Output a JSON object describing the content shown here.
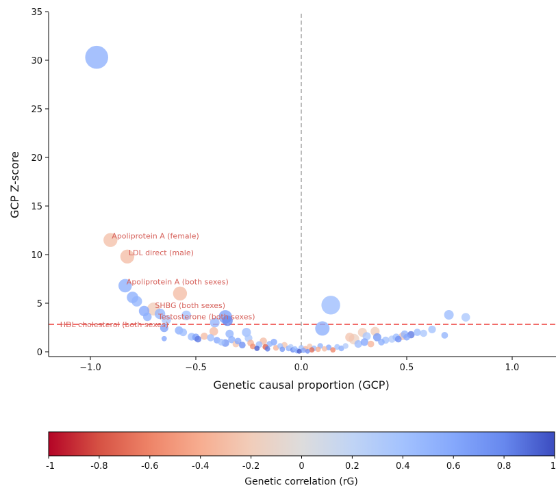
{
  "chart_data": [
    {
      "type": "scatter",
      "xlabel": "Genetic causal proportion (GCP)",
      "ylabel": "GCP Z-score",
      "xlim": [
        -1.2,
        1.2
      ],
      "ylim": [
        -0.5,
        35
      ],
      "x_ticks": [
        -1.0,
        -0.5,
        0.0,
        0.5,
        1.0
      ],
      "x_tick_labels": [
        "−1.0",
        "−0.5",
        "0.0",
        "0.5",
        "1.0"
      ],
      "y_ticks": [
        0,
        5,
        10,
        15,
        20,
        25,
        30,
        35
      ],
      "y_tick_labels": [
        "0",
        "5",
        "10",
        "15",
        "20",
        "25",
        "30",
        "35"
      ],
      "grid": false,
      "reference_lines": {
        "significance_threshold_y": 2.83,
        "significance_color": "#f0605d",
        "zero_x": 0.0,
        "zero_color": "#bbbbbb"
      },
      "annotation_color": "#d6605a",
      "annotations": [
        {
          "text": "Apoliprotein A (female)",
          "x": -0.905,
          "y": 11.5
        },
        {
          "text": "LDL direct (male)",
          "x": -0.825,
          "y": 9.8
        },
        {
          "text": "Apoliprotein A (both sexes)",
          "x": -0.835,
          "y": 6.8
        },
        {
          "text": "SHBG (both sexes)",
          "x": -0.7,
          "y": 4.35
        },
        {
          "text": "Testosterone (both sexes)",
          "x": -0.685,
          "y": 3.2
        },
        {
          "text": "HDL cholesterol (both sexes)",
          "x": -1.15,
          "y": 2.4
        }
      ],
      "points": [
        {
          "x": -0.97,
          "y": 30.3,
          "size": 2.4,
          "rg": 0.55
        },
        {
          "x": -0.905,
          "y": 11.5,
          "size": 1.45,
          "rg": -0.28
        },
        {
          "x": -0.825,
          "y": 9.8,
          "size": 1.45,
          "rg": -0.3
        },
        {
          "x": -0.835,
          "y": 6.8,
          "size": 1.4,
          "rg": 0.55
        },
        {
          "x": -0.575,
          "y": 6.0,
          "size": 1.45,
          "rg": -0.3
        },
        {
          "x": -0.8,
          "y": 5.6,
          "size": 1.2,
          "rg": 0.55
        },
        {
          "x": -0.78,
          "y": 5.2,
          "size": 1.1,
          "rg": 0.5
        },
        {
          "x": -0.745,
          "y": 4.2,
          "size": 1.1,
          "rg": 0.6
        },
        {
          "x": -0.7,
          "y": 4.4,
          "size": 1.35,
          "rg": -0.2
        },
        {
          "x": -0.67,
          "y": 3.9,
          "size": 1.1,
          "rg": 0.5
        },
        {
          "x": -0.73,
          "y": 3.6,
          "size": 0.9,
          "rg": 0.55
        },
        {
          "x": -0.64,
          "y": 3.3,
          "size": 1.0,
          "rg": 0.35
        },
        {
          "x": -0.545,
          "y": 3.75,
          "size": 1.0,
          "rg": 0.4
        },
        {
          "x": -0.36,
          "y": 3.6,
          "size": 1.4,
          "rg": 0.65
        },
        {
          "x": -0.35,
          "y": 3.2,
          "size": 1.1,
          "rg": 0.8
        },
        {
          "x": -0.41,
          "y": 3.0,
          "size": 1.0,
          "rg": 0.5
        },
        {
          "x": -0.415,
          "y": 2.1,
          "size": 0.9,
          "rg": -0.3
        },
        {
          "x": -0.65,
          "y": 2.45,
          "size": 0.85,
          "rg": 0.65
        },
        {
          "x": -0.58,
          "y": 2.2,
          "size": 0.85,
          "rg": 0.55
        },
        {
          "x": -0.56,
          "y": 2.0,
          "size": 0.8,
          "rg": 0.45
        },
        {
          "x": -0.65,
          "y": 1.35,
          "size": 0.55,
          "rg": 0.6
        },
        {
          "x": -0.52,
          "y": 1.55,
          "size": 0.8,
          "rg": 0.45
        },
        {
          "x": -0.5,
          "y": 1.5,
          "size": 0.75,
          "rg": 0.65
        },
        {
          "x": -0.49,
          "y": 1.3,
          "size": 0.7,
          "rg": 0.85
        },
        {
          "x": -0.46,
          "y": 1.6,
          "size": 0.75,
          "rg": -0.3
        },
        {
          "x": -0.43,
          "y": 1.45,
          "size": 0.75,
          "rg": 0.45
        },
        {
          "x": -0.4,
          "y": 1.2,
          "size": 0.7,
          "rg": 0.6
        },
        {
          "x": -0.38,
          "y": 1.0,
          "size": 0.7,
          "rg": 0.4
        },
        {
          "x": -0.36,
          "y": 0.9,
          "size": 0.8,
          "rg": 0.7
        },
        {
          "x": -0.34,
          "y": 1.85,
          "size": 0.85,
          "rg": 0.5
        },
        {
          "x": -0.33,
          "y": 1.25,
          "size": 0.75,
          "rg": 0.55
        },
        {
          "x": -0.31,
          "y": 0.8,
          "size": 0.7,
          "rg": -0.25
        },
        {
          "x": -0.3,
          "y": 1.1,
          "size": 0.7,
          "rg": 0.6
        },
        {
          "x": -0.28,
          "y": 0.7,
          "size": 0.7,
          "rg": 0.75
        },
        {
          "x": -0.26,
          "y": 2.0,
          "size": 0.95,
          "rg": 0.45
        },
        {
          "x": -0.25,
          "y": 1.4,
          "size": 0.8,
          "rg": 0.35
        },
        {
          "x": -0.24,
          "y": 0.9,
          "size": 0.7,
          "rg": -0.35
        },
        {
          "x": -0.23,
          "y": 0.55,
          "size": 0.6,
          "rg": -0.55
        },
        {
          "x": -0.21,
          "y": 0.35,
          "size": 0.55,
          "rg": 0.95
        },
        {
          "x": -0.2,
          "y": 0.75,
          "size": 0.7,
          "rg": 0.45
        },
        {
          "x": -0.18,
          "y": 1.1,
          "size": 0.75,
          "rg": -0.3
        },
        {
          "x": -0.17,
          "y": 0.5,
          "size": 0.6,
          "rg": -0.75
        },
        {
          "x": -0.16,
          "y": 0.3,
          "size": 0.55,
          "rg": 0.85
        },
        {
          "x": -0.15,
          "y": 0.8,
          "size": 0.65,
          "rg": 0.5
        },
        {
          "x": -0.13,
          "y": 1.0,
          "size": 0.7,
          "rg": 0.6
        },
        {
          "x": -0.12,
          "y": 0.4,
          "size": 0.6,
          "rg": -0.35
        },
        {
          "x": -0.1,
          "y": 0.6,
          "size": 0.6,
          "rg": 0.4
        },
        {
          "x": -0.09,
          "y": 0.25,
          "size": 0.55,
          "rg": 0.7
        },
        {
          "x": -0.08,
          "y": 0.7,
          "size": 0.65,
          "rg": -0.25
        },
        {
          "x": -0.06,
          "y": 0.35,
          "size": 0.6,
          "rg": 0.55
        },
        {
          "x": -0.05,
          "y": 0.5,
          "size": 0.6,
          "rg": 0.3
        },
        {
          "x": -0.04,
          "y": 0.2,
          "size": 0.55,
          "rg": 0.8
        },
        {
          "x": -0.03,
          "y": 0.3,
          "size": 0.55,
          "rg": 0.45
        },
        {
          "x": -0.02,
          "y": 0.1,
          "size": 0.55,
          "rg": 0.55
        },
        {
          "x": -0.01,
          "y": 0.05,
          "size": 0.5,
          "rg": 0.95
        },
        {
          "x": 0.0,
          "y": 0.4,
          "size": 0.6,
          "rg": 0.4
        },
        {
          "x": 0.01,
          "y": 0.15,
          "size": 0.55,
          "rg": 0.6
        },
        {
          "x": 0.02,
          "y": 0.3,
          "size": 0.6,
          "rg": -0.35
        },
        {
          "x": 0.03,
          "y": 0.05,
          "size": 0.5,
          "rg": 0.75
        },
        {
          "x": 0.04,
          "y": 0.55,
          "size": 0.6,
          "rg": -0.25
        },
        {
          "x": 0.05,
          "y": 0.2,
          "size": 0.55,
          "rg": -0.7
        },
        {
          "x": 0.06,
          "y": 0.35,
          "size": 0.6,
          "rg": 0.45
        },
        {
          "x": 0.08,
          "y": 0.25,
          "size": 0.55,
          "rg": -0.4
        },
        {
          "x": 0.09,
          "y": 0.6,
          "size": 0.6,
          "rg": 0.5
        },
        {
          "x": 0.1,
          "y": 2.4,
          "size": 1.5,
          "rg": 0.55
        },
        {
          "x": 0.11,
          "y": 0.3,
          "size": 0.55,
          "rg": -0.3
        },
        {
          "x": 0.13,
          "y": 0.45,
          "size": 0.6,
          "rg": 0.6
        },
        {
          "x": 0.14,
          "y": 4.8,
          "size": 1.95,
          "rg": 0.45
        },
        {
          "x": 0.15,
          "y": 0.2,
          "size": 0.55,
          "rg": -0.6
        },
        {
          "x": 0.17,
          "y": 0.5,
          "size": 0.6,
          "rg": 0.4
        },
        {
          "x": 0.19,
          "y": 0.35,
          "size": 0.6,
          "rg": 0.55
        },
        {
          "x": 0.21,
          "y": 0.6,
          "size": 0.6,
          "rg": 0.3
        },
        {
          "x": 0.23,
          "y": 1.5,
          "size": 0.95,
          "rg": -0.25
        },
        {
          "x": 0.25,
          "y": 1.3,
          "size": 1.1,
          "rg": -0.15
        },
        {
          "x": 0.27,
          "y": 0.8,
          "size": 0.8,
          "rg": 0.45
        },
        {
          "x": 0.29,
          "y": 2.0,
          "size": 0.95,
          "rg": -0.2
        },
        {
          "x": 0.3,
          "y": 1.0,
          "size": 0.8,
          "rg": 0.6
        },
        {
          "x": 0.31,
          "y": 1.6,
          "size": 0.85,
          "rg": 0.35
        },
        {
          "x": 0.33,
          "y": 0.8,
          "size": 0.7,
          "rg": -0.35
        },
        {
          "x": 0.35,
          "y": 2.1,
          "size": 0.95,
          "rg": -0.2
        },
        {
          "x": 0.36,
          "y": 1.5,
          "size": 0.85,
          "rg": 0.7
        },
        {
          "x": 0.38,
          "y": 1.0,
          "size": 0.7,
          "rg": 0.55
        },
        {
          "x": 0.4,
          "y": 1.2,
          "size": 0.75,
          "rg": 0.4
        },
        {
          "x": 0.43,
          "y": 1.3,
          "size": 0.75,
          "rg": 0.3
        },
        {
          "x": 0.45,
          "y": 1.5,
          "size": 0.75,
          "rg": 0.45
        },
        {
          "x": 0.46,
          "y": 1.3,
          "size": 0.7,
          "rg": 0.75
        },
        {
          "x": 0.48,
          "y": 1.6,
          "size": 0.8,
          "rg": -0.25
        },
        {
          "x": 0.49,
          "y": 1.8,
          "size": 0.8,
          "rg": 0.5
        },
        {
          "x": 0.5,
          "y": 1.5,
          "size": 0.7,
          "rg": 0.6
        },
        {
          "x": 0.52,
          "y": 1.75,
          "size": 0.75,
          "rg": 0.85
        },
        {
          "x": 0.55,
          "y": 2.0,
          "size": 0.75,
          "rg": 0.45
        },
        {
          "x": 0.58,
          "y": 1.9,
          "size": 0.75,
          "rg": 0.35
        },
        {
          "x": 0.62,
          "y": 2.3,
          "size": 0.8,
          "rg": 0.4
        },
        {
          "x": 0.68,
          "y": 1.7,
          "size": 0.7,
          "rg": 0.5
        },
        {
          "x": 0.7,
          "y": 3.8,
          "size": 1.0,
          "rg": 0.45
        },
        {
          "x": 0.78,
          "y": 3.55,
          "size": 0.9,
          "rg": 0.35
        }
      ],
      "point_opacity": 0.78
    },
    {
      "type": "heatmap",
      "label": "Genetic correlation (rG)",
      "range": [
        -1,
        1
      ],
      "ticks": [
        -1,
        -0.8,
        -0.6,
        -0.4,
        -0.2,
        0,
        0.2,
        0.4,
        0.6,
        0.8,
        1
      ],
      "tick_labels": [
        "-1",
        "-0.8",
        "-0.6",
        "-0.4",
        "-0.2",
        "0",
        "0.2",
        "0.4",
        "0.6",
        "0.8",
        "1"
      ],
      "colormap": "coolwarm_r",
      "colormap_stops": [
        "#b40426",
        "#d65244",
        "#ee8468",
        "#f7ad90",
        "#f1cdba",
        "#dddcdc",
        "#c0d4f5",
        "#a3c2fe",
        "#85a8fc",
        "#6788ee",
        "#3b4cc0"
      ]
    }
  ]
}
